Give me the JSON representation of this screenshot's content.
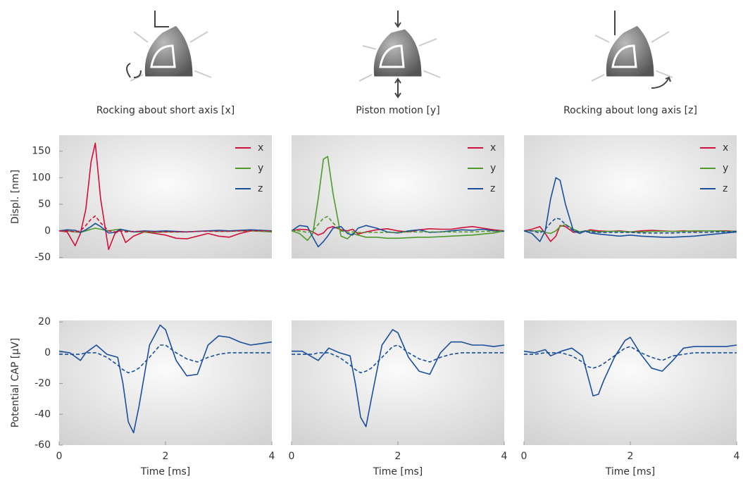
{
  "chart_data": [
    {
      "type": "line",
      "title": "Rocking about short axis [x]",
      "y_label": "Displ. [nm]",
      "x": [
        0,
        0.15,
        0.3,
        0.4,
        0.5,
        0.6,
        0.68,
        0.78,
        0.93,
        1.05,
        1.15,
        1.25,
        1.4,
        1.6,
        1.8,
        2.0,
        2.2,
        2.4,
        2.6,
        2.8,
        3.0,
        3.2,
        3.4,
        3.6,
        3.8,
        4.0
      ],
      "xlim": [
        0,
        4
      ],
      "ylim": [
        -52,
        180
      ],
      "yticks": [
        -50,
        0,
        50,
        100,
        150
      ],
      "legend": "upper right",
      "series": [
        {
          "name": "x",
          "color": "#d0103a",
          "values": [
            0,
            -2,
            -28,
            -5,
            40,
            130,
            165,
            60,
            -35,
            -5,
            2,
            -22,
            -10,
            -2,
            -5,
            -8,
            -14,
            -15,
            -10,
            -5,
            -10,
            -12,
            -5,
            0,
            1,
            -2
          ]
        },
        {
          "name": "y",
          "color": "#4f9a2a",
          "values": [
            0,
            0,
            -2,
            -3,
            0,
            3,
            5,
            3,
            0,
            2,
            3,
            0,
            -2,
            -2,
            -3,
            -2,
            -2,
            -2,
            -1,
            0,
            -1,
            -1,
            0,
            0,
            -1,
            -2
          ]
        },
        {
          "name": "z",
          "color": "#1a4f9c",
          "values": [
            0,
            2,
            1,
            -3,
            2,
            8,
            14,
            8,
            -4,
            -3,
            3,
            1,
            -2,
            0,
            -1,
            0,
            -1,
            -2,
            -1,
            0,
            1,
            0,
            1,
            2,
            1,
            0
          ]
        },
        {
          "color": "#d0103a",
          "dashed": true,
          "values": [
            0,
            0,
            -2,
            0,
            10,
            22,
            28,
            15,
            0,
            -2,
            0,
            -2,
            -1,
            -1,
            -2,
            -2,
            -2,
            -2,
            -1,
            -1,
            -1,
            -1,
            0,
            0,
            0,
            0
          ]
        }
      ]
    },
    {
      "type": "line",
      "title": "Piston motion [y]",
      "x": [
        0,
        0.15,
        0.3,
        0.4,
        0.5,
        0.6,
        0.68,
        0.78,
        0.93,
        1.05,
        1.15,
        1.25,
        1.4,
        1.6,
        1.8,
        2.0,
        2.2,
        2.4,
        2.6,
        2.8,
        3.0,
        3.2,
        3.4,
        3.6,
        3.8,
        4.0
      ],
      "xlim": [
        0,
        4
      ],
      "ylim": [
        -52,
        180
      ],
      "legend": "upper right",
      "series": [
        {
          "name": "x",
          "color": "#d0103a",
          "values": [
            0,
            3,
            2,
            -2,
            -8,
            -4,
            5,
            8,
            2,
            0,
            3,
            -6,
            -2,
            2,
            4,
            0,
            -2,
            2,
            4,
            3,
            3,
            6,
            8,
            5,
            2,
            0
          ]
        },
        {
          "name": "y",
          "color": "#4f9a2a",
          "values": [
            0,
            -5,
            -18,
            -5,
            60,
            135,
            140,
            70,
            -10,
            -15,
            -5,
            -8,
            -12,
            -12,
            -14,
            -14,
            -13,
            -12,
            -12,
            -11,
            -10,
            -9,
            -8,
            -6,
            -4,
            0
          ]
        },
        {
          "name": "z",
          "color": "#1a4f9c",
          "values": [
            0,
            10,
            8,
            -12,
            -30,
            -20,
            -10,
            5,
            8,
            -5,
            -8,
            5,
            10,
            5,
            -2,
            -4,
            0,
            2,
            -3,
            -2,
            0,
            2,
            1,
            3,
            0,
            -1
          ]
        },
        {
          "color": "#4f9a2a",
          "dashed": true,
          "values": [
            0,
            0,
            -3,
            0,
            12,
            24,
            27,
            15,
            0,
            -3,
            -2,
            -3,
            -3,
            -3,
            -3,
            -3,
            -2,
            -2,
            -2,
            -2,
            -2,
            -2,
            -2,
            -1,
            -1,
            0
          ]
        }
      ]
    },
    {
      "type": "line",
      "title": "Rocking about long axis [z]",
      "x": [
        0,
        0.15,
        0.3,
        0.4,
        0.5,
        0.6,
        0.68,
        0.78,
        0.93,
        1.05,
        1.15,
        1.25,
        1.4,
        1.6,
        1.8,
        2.0,
        2.2,
        2.4,
        2.6,
        2.8,
        3.0,
        3.2,
        3.4,
        3.6,
        3.8,
        4.0
      ],
      "xlim": [
        0,
        4
      ],
      "ylim": [
        -52,
        180
      ],
      "legend": "upper right",
      "series": [
        {
          "name": "x",
          "color": "#d0103a",
          "values": [
            0,
            3,
            8,
            -5,
            -20,
            -10,
            10,
            8,
            -3,
            -2,
            -1,
            2,
            0,
            -1,
            0,
            -2,
            0,
            1,
            0,
            -1,
            0,
            -1,
            0,
            0,
            0,
            -1
          ]
        },
        {
          "name": "y",
          "color": "#4f9a2a",
          "values": [
            0,
            0,
            0,
            -3,
            -5,
            0,
            8,
            12,
            3,
            -2,
            0,
            0,
            -2,
            -1,
            -1,
            -2,
            -2,
            -1,
            -1,
            -1,
            -1,
            0,
            0,
            0,
            -1,
            -1
          ]
        },
        {
          "name": "z",
          "color": "#1a4f9c",
          "values": [
            0,
            -5,
            -20,
            0,
            60,
            100,
            95,
            50,
            0,
            -5,
            0,
            -4,
            -6,
            -8,
            -10,
            -8,
            -10,
            -11,
            -12,
            -12,
            -11,
            -10,
            -8,
            -6,
            -4,
            -2
          ]
        },
        {
          "color": "#1a4f9c",
          "dashed": true,
          "values": [
            0,
            0,
            -4,
            3,
            15,
            24,
            22,
            12,
            0,
            -2,
            -2,
            -2,
            -3,
            -3,
            -3,
            -3,
            -4,
            -4,
            -4,
            -4,
            -3,
            -3,
            -3,
            -2,
            -2,
            -1
          ]
        }
      ]
    },
    {
      "type": "line",
      "y_label": "Potential CAP [µV]",
      "x_label": "Time [ms]",
      "x": [
        0,
        0.2,
        0.4,
        0.5,
        0.7,
        0.9,
        1.1,
        1.2,
        1.3,
        1.4,
        1.5,
        1.7,
        1.9,
        2.0,
        2.2,
        2.4,
        2.6,
        2.8,
        3.0,
        3.2,
        3.4,
        3.6,
        3.8,
        4.0
      ],
      "xlim": [
        0,
        4
      ],
      "xticks": [
        0,
        2,
        4
      ],
      "ylim": [
        -60,
        21
      ],
      "yticks": [
        -60,
        -40,
        -20,
        0,
        20
      ],
      "series": [
        {
          "color": "#1a4f9c",
          "values": [
            1,
            0,
            -5,
            0,
            5,
            -1,
            -3,
            -20,
            -45,
            -52,
            -35,
            5,
            18,
            15,
            -5,
            -15,
            -14,
            5,
            11,
            10,
            7,
            5,
            6,
            7
          ]
        },
        {
          "color": "#1a4f9c",
          "dashed": true,
          "values": [
            -1,
            -1,
            -1,
            0,
            0,
            -3,
            -8,
            -11,
            -13,
            -12,
            -10,
            -3,
            5,
            5,
            0,
            -4,
            -6,
            -3,
            -1,
            0,
            0,
            0,
            0,
            0
          ]
        }
      ]
    },
    {
      "type": "line",
      "x_label": "Time [ms]",
      "x": [
        0,
        0.2,
        0.4,
        0.5,
        0.7,
        0.9,
        1.1,
        1.2,
        1.3,
        1.4,
        1.5,
        1.7,
        1.9,
        2.0,
        2.2,
        2.4,
        2.6,
        2.8,
        3.0,
        3.2,
        3.4,
        3.6,
        3.8,
        4.0
      ],
      "xlim": [
        0,
        4
      ],
      "xticks": [
        0,
        2,
        4
      ],
      "ylim": [
        -60,
        21
      ],
      "series": [
        {
          "color": "#1a4f9c",
          "values": [
            1,
            1,
            -3,
            -5,
            3,
            0,
            -2,
            -20,
            -42,
            -48,
            -30,
            5,
            15,
            13,
            -3,
            -12,
            -14,
            0,
            7,
            7,
            5,
            5,
            4,
            5
          ]
        },
        {
          "color": "#1a4f9c",
          "dashed": true,
          "values": [
            -1,
            -1,
            -1,
            0,
            0,
            -3,
            -8,
            -11,
            -13,
            -12,
            -10,
            -3,
            4,
            5,
            0,
            -4,
            -6,
            -3,
            -1,
            0,
            0,
            0,
            0,
            0
          ]
        }
      ]
    },
    {
      "type": "line",
      "x_label": "Time [ms]",
      "x": [
        0,
        0.2,
        0.4,
        0.5,
        0.7,
        0.9,
        1.1,
        1.2,
        1.3,
        1.4,
        1.5,
        1.7,
        1.9,
        2.0,
        2.2,
        2.4,
        2.6,
        2.8,
        3.0,
        3.2,
        3.4,
        3.6,
        3.8,
        4.0
      ],
      "xlim": [
        0,
        4
      ],
      "xticks": [
        0,
        2,
        4
      ],
      "ylim": [
        -60,
        21
      ],
      "series": [
        {
          "color": "#1a4f9c",
          "values": [
            1,
            0,
            2,
            -2,
            1,
            3,
            -2,
            -15,
            -28,
            -27,
            -18,
            -3,
            8,
            10,
            -1,
            -10,
            -12,
            -5,
            3,
            4,
            4,
            4,
            4,
            5
          ]
        },
        {
          "color": "#1a4f9c",
          "dashed": true,
          "values": [
            -1,
            -1,
            0,
            0,
            0,
            -2,
            -6,
            -9,
            -10,
            -9,
            -7,
            -2,
            3,
            4,
            0,
            -3,
            -5,
            -2,
            -1,
            0,
            0,
            0,
            0,
            0
          ]
        }
      ]
    }
  ]
}
